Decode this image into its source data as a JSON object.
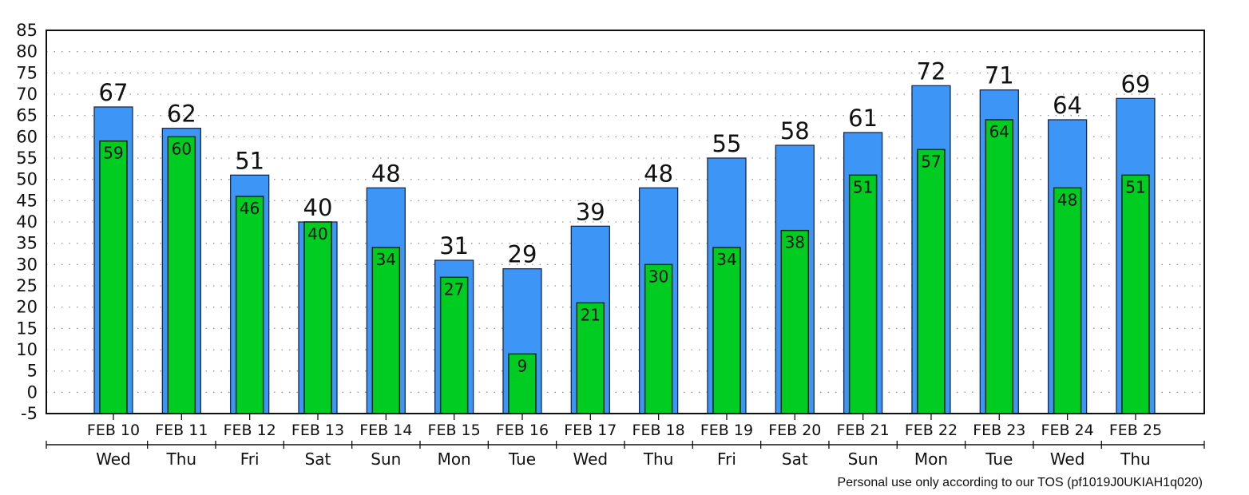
{
  "chart_data": {
    "type": "bar",
    "categories": [
      "FEB 10",
      "FEB 11",
      "FEB 12",
      "FEB 13",
      "FEB 14",
      "FEB 15",
      "FEB 16",
      "FEB 17",
      "FEB 18",
      "FEB 19",
      "FEB 20",
      "FEB 21",
      "FEB 22",
      "FEB 23",
      "FEB 24",
      "FEB 25"
    ],
    "day_labels": [
      "Wed",
      "Thu",
      "Fri",
      "Sat",
      "Sun",
      "Mon",
      "Tue",
      "Wed",
      "Thu",
      "Fri",
      "Sat",
      "Sun",
      "Mon",
      "Tue",
      "Wed",
      "Thu"
    ],
    "series": [
      {
        "values": [
          67,
          62,
          51,
          40,
          48,
          31,
          29,
          39,
          48,
          55,
          58,
          61,
          72,
          71,
          64,
          69
        ],
        "color": "#3d96f5"
      },
      {
        "values": [
          59,
          60,
          46,
          40,
          34,
          27,
          9,
          21,
          30,
          34,
          38,
          51,
          57,
          64,
          48,
          51
        ],
        "color": "#00cc22"
      }
    ],
    "ylim": [
      -5,
      85
    ],
    "yticks": [
      -5,
      0,
      5,
      10,
      15,
      20,
      25,
      30,
      35,
      40,
      45,
      50,
      55,
      60,
      65,
      70,
      75,
      80,
      85
    ],
    "grid": true,
    "title": "",
    "xlabel": "",
    "ylabel": ""
  },
  "footer": {
    "note": "Personal use only according to our TOS (pf1019J0UKIAH1q020)"
  }
}
